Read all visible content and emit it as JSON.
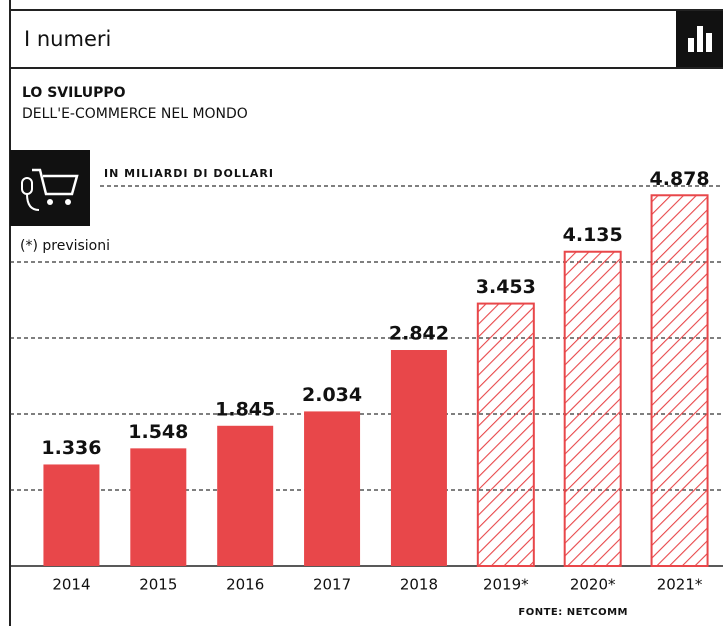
{
  "header": "I numeri",
  "chart_data": {
    "type": "bar",
    "title": "LO SVILUPPO",
    "subtitle": "DELL'E-COMMERCE NEL MONDO",
    "unit_label": "IN MILIARDI DI DOLLARI",
    "note": "(*) previsioni",
    "source": "FONTE: NETCOMM",
    "categories": [
      "2014",
      "2015",
      "2016",
      "2017",
      "2018",
      "2019*",
      "2020*",
      "2021*"
    ],
    "values": [
      1336,
      1548,
      1845,
      2034,
      2842,
      3453,
      4135,
      4878
    ],
    "value_labels": [
      "1.336",
      "1.548",
      "1.845",
      "2.034",
      "2.842",
      "3.453",
      "4.135",
      "4.878"
    ],
    "hatched": [
      false,
      false,
      false,
      false,
      false,
      true,
      true,
      true
    ],
    "color": "#e8474a",
    "ylim": [
      0,
      5000
    ],
    "gridlines": [
      1000,
      2000,
      3000,
      4000,
      5000
    ]
  }
}
